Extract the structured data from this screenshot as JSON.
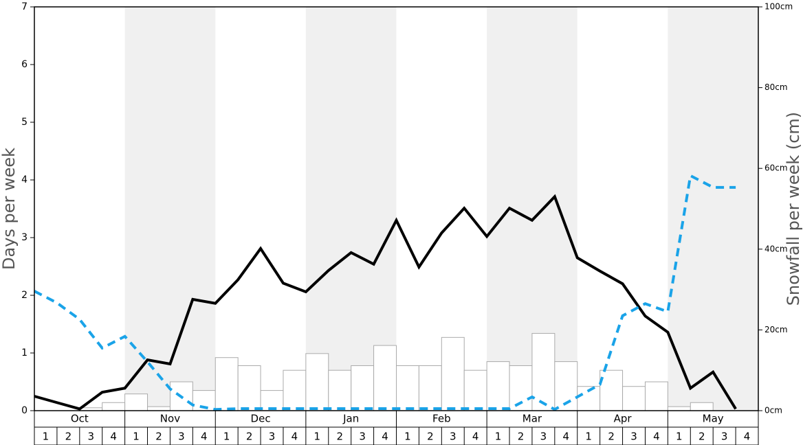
{
  "chart_data": {
    "type": "combo",
    "ylabel": "Days per week",
    "y2label": "Snowfall per week (cm)",
    "months": [
      "Oct",
      "Nov",
      "Dec",
      "Jan",
      "Feb",
      "Mar",
      "Apr",
      "May"
    ],
    "categories": [
      "1",
      "2",
      "3",
      "4",
      "1",
      "2",
      "3",
      "4",
      "1",
      "2",
      "3",
      "4",
      "1",
      "2",
      "3",
      "4",
      "1",
      "2",
      "3",
      "4",
      "1",
      "2",
      "3",
      "4",
      "1",
      "2",
      "3",
      "4",
      "1",
      "2",
      "3",
      "4"
    ],
    "ylim": [
      0,
      7
    ],
    "yticks": [
      0,
      1,
      2,
      3,
      4,
      5,
      6,
      7
    ],
    "y2lim": [
      0,
      100
    ],
    "y2ticks": [
      {
        "value": 0,
        "label": "0cm"
      },
      {
        "value": 20,
        "label": "20cm"
      },
      {
        "value": 40,
        "label": "40cm"
      },
      {
        "value": 60,
        "label": "60cm"
      },
      {
        "value": 80,
        "label": "80cm"
      },
      {
        "value": 100,
        "label": "100cm"
      }
    ],
    "series": [
      {
        "type": "bar",
        "color": "#ffffff",
        "values": [
          0,
          0,
          0.05,
          0.14,
          0.29,
          0.07,
          0.5,
          0.35,
          0.92,
          0.78,
          0.35,
          0.7,
          0.99,
          0.7,
          0.78,
          1.13,
          0.78,
          0.78,
          1.27,
          0.7,
          0.85,
          0.78,
          1.34,
          0.85,
          0.42,
          0.7,
          0.42,
          0.5,
          0.07,
          0.14,
          0,
          0
        ]
      },
      {
        "type": "line",
        "color": "#000000",
        "values": [
          0.25,
          0.14,
          0.03,
          0.32,
          0.39,
          0.88,
          0.81,
          1.93,
          1.86,
          2.27,
          2.81,
          2.21,
          2.06,
          2.43,
          2.74,
          2.54,
          3.3,
          2.49,
          3.08,
          3.51,
          3.02,
          3.51,
          3.3,
          3.71,
          2.65,
          2.42,
          2.2,
          1.64,
          1.36,
          0.39,
          0.67,
          0.03
        ]
      },
      {
        "type": "line",
        "dashed": true,
        "axis": "y2",
        "color": "#1aa3e8",
        "values": [
          29.6,
          26.7,
          22.6,
          15.5,
          18.4,
          12.1,
          5.4,
          1.4,
          0.3,
          0.5,
          0.5,
          0.5,
          0.5,
          0.5,
          0.5,
          0.5,
          0.5,
          0.5,
          0.5,
          0.5,
          0.5,
          0.5,
          3.4,
          0.3,
          3.4,
          6.5,
          23.5,
          26.5,
          24.5,
          58.2,
          55.3,
          55.3
        ]
      }
    ]
  }
}
